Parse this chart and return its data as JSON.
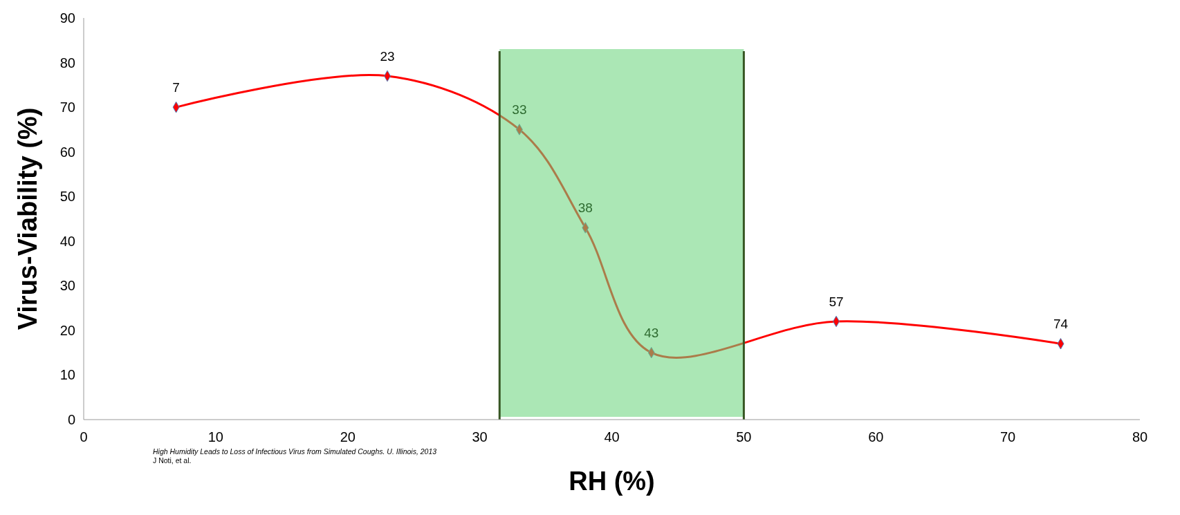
{
  "chart_data": {
    "type": "line",
    "xlabel": "RH (%)",
    "ylabel": "Virus-Viability (%)",
    "x": [
      7,
      23,
      33,
      38,
      43,
      57,
      74
    ],
    "series": [
      {
        "color": "#ff0000",
        "values": [
          70,
          77,
          65,
          43,
          15,
          22,
          17
        ]
      }
    ],
    "xlim": [
      0,
      80
    ],
    "xticks": [
      0,
      10,
      20,
      30,
      40,
      50,
      60,
      70,
      80
    ],
    "ylim": [
      0,
      90
    ],
    "yticks": [
      0,
      10,
      20,
      30,
      40,
      50,
      60,
      70,
      80,
      90
    ],
    "marker": "diamond",
    "line_style": "solid",
    "grid": false,
    "bands": [
      {
        "axis": "x",
        "from": 31.5,
        "to": 50,
        "color": "#6fd57f"
      }
    ],
    "ref_lines": [
      {
        "axis": "x",
        "value": 31.5,
        "color": "#375623"
      },
      {
        "axis": "x",
        "value": 50,
        "color": "#375623"
      }
    ],
    "annotations": [
      {
        "text": "7",
        "x": 7,
        "y": 70
      },
      {
        "text": "23",
        "x": 23,
        "y": 77
      },
      {
        "text": "33",
        "x": 33,
        "y": 65
      },
      {
        "text": "38",
        "x": 38,
        "y": 43
      },
      {
        "text": "43",
        "x": 43,
        "y": 15
      },
      {
        "text": "57",
        "x": 57,
        "y": 22
      },
      {
        "text": "74",
        "x": 74,
        "y": 17
      },
      "High Humidity Leads to Loss of Infectious Virus from Simulated Coughs. U. Illinois, 2013",
      "J Noti, et al."
    ]
  }
}
